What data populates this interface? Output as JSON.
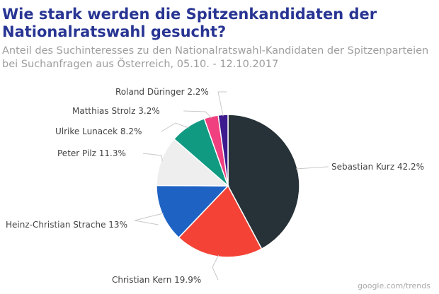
{
  "chart_data": {
    "type": "pie",
    "title": "Wie stark werden die Spitzenkandidaten der Nationalratswahl gesucht?",
    "subtitle": "Anteil des Suchinteresses zu den Nationalratswahl-Kandidaten der Spitzenparteien bei Suchanfragen aus Österreich, 05.10. - 12.10.2017",
    "unit": "%",
    "slices": [
      {
        "label": "Sebastian Kurz",
        "value": 42.2,
        "color": "#263238"
      },
      {
        "label": "Christian Kern",
        "value": 19.9,
        "color": "#f44336"
      },
      {
        "label": "Heinz-Christian Strache",
        "value": 13,
        "color": "#1e63c4"
      },
      {
        "label": "Peter Pilz",
        "value": 11.3,
        "color": "#eeeeee"
      },
      {
        "label": "Ulrike Lunacek",
        "value": 8.2,
        "color": "#109a82"
      },
      {
        "label": "Matthias Strolz",
        "value": 3.2,
        "color": "#f0407f"
      },
      {
        "label": "Roland Düringer",
        "value": 2.2,
        "color": "#3d1a8e"
      }
    ],
    "start_angle": "top, clockwise",
    "legend": "none, direct labels"
  },
  "source": "google.com/trends"
}
